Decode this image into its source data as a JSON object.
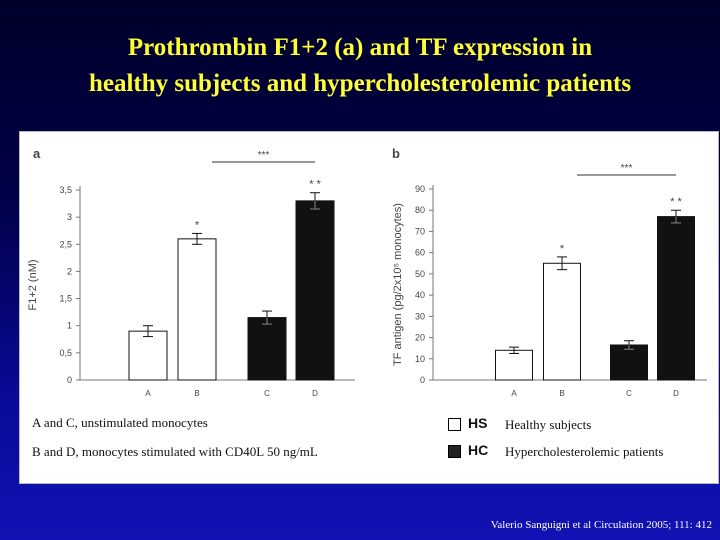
{
  "slide": {
    "title_line1": "Prothrombin F1+2 (a) and TF expression in",
    "title_line2": "healthy subjects and hypercholesterolemic patients",
    "citation": "Valerio Sanguigni et al Circulation 2005; 111: 412"
  },
  "notes": {
    "line1": "A and C, unstimulated monocytes",
    "line2": "B and D, monocytes stimulated with CD40L 50 ng/mL"
  },
  "legend": [
    {
      "code": "HS",
      "label": "Healthy subjects",
      "color": "#ffffff"
    },
    {
      "code": "HC",
      "label": "Hypercholesterolemic patients",
      "color": "#111111"
    }
  ],
  "chart_data": [
    {
      "panel_label": "a",
      "type": "bar",
      "ylabel": "F1+2 (nM)",
      "ylim": [
        0,
        3.5
      ],
      "yticks": [
        "0",
        "0,5",
        "1",
        "1,5",
        "2",
        "2,5",
        "3",
        "3,5"
      ],
      "categories": [
        "A",
        "B",
        "C",
        "D"
      ],
      "values": [
        0.9,
        2.6,
        1.15,
        3.3
      ],
      "errors": [
        0.1,
        0.1,
        0.12,
        0.15
      ],
      "bar_colors": [
        "#ffffff",
        "#ffffff",
        "#111111",
        "#111111"
      ],
      "markers": [
        "",
        "*",
        "",
        "* *"
      ],
      "bracket_label": "***",
      "bracket_between": [
        "B",
        "D"
      ]
    },
    {
      "panel_label": "b",
      "type": "bar",
      "ylabel": "TF antigen (pg/2x10⁵ monocytes)",
      "ylim": [
        0,
        90
      ],
      "yticks": [
        "0",
        "10",
        "20",
        "30",
        "40",
        "50",
        "60",
        "70",
        "80",
        "90"
      ],
      "categories": [
        "A",
        "B",
        "C",
        "D"
      ],
      "values": [
        14,
        55,
        16.5,
        77
      ],
      "errors": [
        1.5,
        3,
        2,
        3
      ],
      "bar_colors": [
        "#ffffff",
        "#ffffff",
        "#111111",
        "#111111"
      ],
      "markers": [
        "",
        "*",
        "",
        "* *"
      ],
      "bracket_label": "***",
      "bracket_between": [
        "B",
        "D"
      ]
    }
  ]
}
